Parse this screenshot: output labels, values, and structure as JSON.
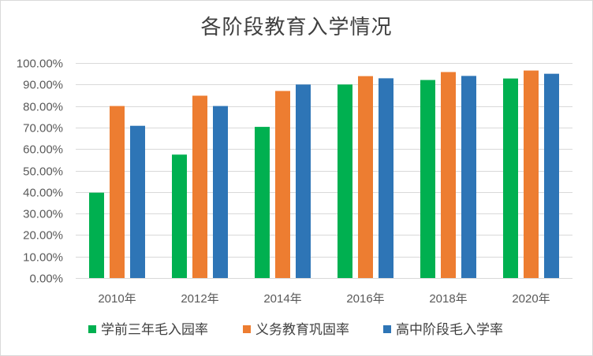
{
  "chart_data": {
    "type": "bar",
    "title": "各阶段教育入学情况",
    "categories": [
      "2010年",
      "2012年",
      "2014年",
      "2016年",
      "2018年",
      "2020年"
    ],
    "ylim": [
      0,
      100
    ],
    "yticks": [
      0,
      10,
      20,
      30,
      40,
      50,
      60,
      70,
      80,
      90,
      100
    ],
    "ytick_labels": [
      "0.00%",
      "10.00%",
      "20.00%",
      "30.00%",
      "40.00%",
      "50.00%",
      "60.00%",
      "70.00%",
      "80.00%",
      "90.00%",
      "100.00%"
    ],
    "grid": true,
    "legend_position": "bottom",
    "series": [
      {
        "name": "学前三年毛入园率",
        "color": "#00b050",
        "values": [
          39.7,
          57.4,
          70.3,
          90.0,
          92.1,
          92.8
        ]
      },
      {
        "name": "义务教育巩固率",
        "color": "#ed7d31",
        "values": [
          80.0,
          84.8,
          87.0,
          93.9,
          95.8,
          96.5
        ]
      },
      {
        "name": "高中阶段毛入学率",
        "color": "#2e75b6",
        "values": [
          70.8,
          80.0,
          90.0,
          92.9,
          94.0,
          95.0
        ]
      }
    ]
  }
}
